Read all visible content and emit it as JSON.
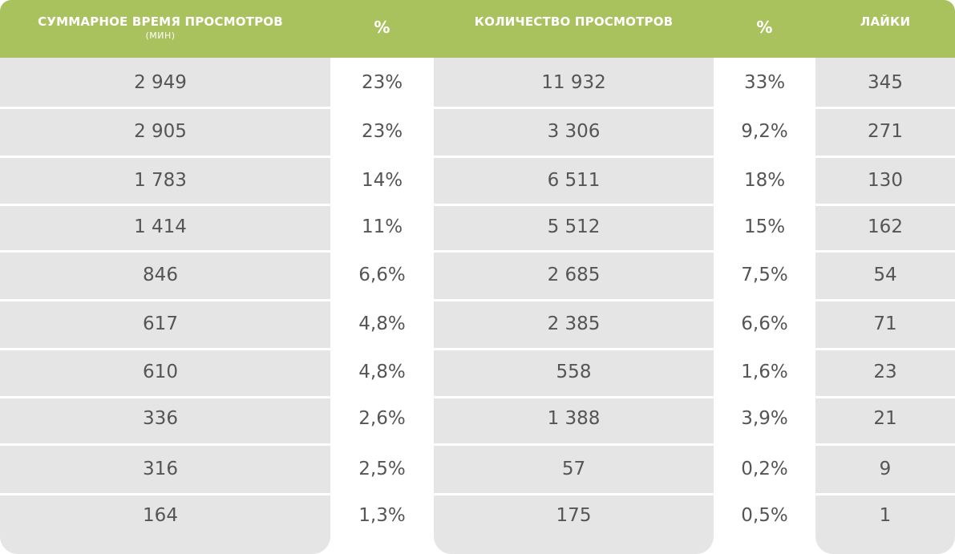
{
  "columns": [
    {
      "title": "СУММАРНОЕ ВРЕМЯ ПРОСМОТРОВ",
      "subtitle": "(МИН)"
    },
    {
      "title": "%"
    },
    {
      "title": "КОЛИЧЕСТВО ПРОСМОТРОВ"
    },
    {
      "title": "%"
    },
    {
      "title": "ЛАЙКИ"
    }
  ],
  "rows": [
    [
      "2 949",
      "23%",
      "11 932",
      "33%",
      "345"
    ],
    [
      "2 905",
      "23%",
      "3 306",
      "9,2%",
      "271"
    ],
    [
      "1 783",
      "14%",
      "6 511",
      "18%",
      "130"
    ],
    [
      "1 414",
      "11%",
      "5 512",
      "15%",
      "162"
    ],
    [
      "846",
      "6,6%",
      "2 685",
      "7,5%",
      "54"
    ],
    [
      "617",
      "4,8%",
      "2 385",
      "6,6%",
      "71"
    ],
    [
      "610",
      "4,8%",
      "558",
      "1,6%",
      "23"
    ],
    [
      "336",
      "2,6%",
      "1 388",
      "3,9%",
      "21"
    ],
    [
      "316",
      "2,5%",
      "57",
      "0,2%",
      "9"
    ],
    [
      "164",
      "1,3%",
      "175",
      "0,5%",
      "1"
    ]
  ],
  "colors": {
    "header": "#a9c25d",
    "cell_background": "#e5e5e5",
    "text": "#555555",
    "header_text": "#ffffff"
  }
}
